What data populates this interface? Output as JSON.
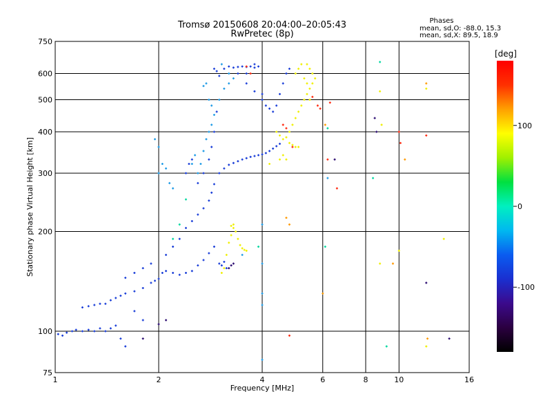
{
  "chart_data": {
    "type": "scatter",
    "title": "Tromsø 20150608 20:04:00–20:05:43",
    "subtitle": "RwPretec (8p)",
    "xlabel": "Frequency [MHz]",
    "ylabel": "Stationary phase Virtual Height [km]",
    "x_scale": "log",
    "y_scale": "log",
    "xlim": [
      1,
      16
    ],
    "ylim": [
      75,
      750
    ],
    "x_ticks": [
      1,
      2,
      4,
      6,
      8,
      10,
      16
    ],
    "y_ticks": [
      75,
      100,
      200,
      300,
      400,
      500,
      600,
      750
    ],
    "grid": true,
    "stats": {
      "heading": "Phases",
      "line_o": "mean, sd,O: -88.0, 15.3",
      "line_x": "mean, sd,X:  89.5, 18.9"
    },
    "colorbar": {
      "label": "[deg]",
      "range": [
        -180,
        180
      ],
      "ticks": [
        100,
        0,
        -100
      ],
      "colormap": [
        "#000000",
        "#2b0040",
        "#3b0a8c",
        "#1a2fd0",
        "#0a5cf0",
        "#00b8f0",
        "#00f0c0",
        "#00e040",
        "#a0f000",
        "#ffff00",
        "#ffa000",
        "#ff3000",
        "#ff0000"
      ]
    },
    "series": [
      {
        "phase": -100,
        "color": "#1a3ed8",
        "points": [
          [
            1.02,
            98
          ],
          [
            1.05,
            97
          ],
          [
            1.08,
            99
          ],
          [
            1.12,
            100
          ],
          [
            1.15,
            101
          ],
          [
            1.2,
            100
          ],
          [
            1.25,
            101
          ],
          [
            1.3,
            100
          ],
          [
            1.35,
            102
          ],
          [
            1.4,
            100
          ],
          [
            1.45,
            102
          ],
          [
            1.5,
            104
          ],
          [
            1.2,
            118
          ],
          [
            1.25,
            119
          ],
          [
            1.3,
            120
          ],
          [
            1.35,
            121
          ],
          [
            1.4,
            121
          ],
          [
            1.45,
            124
          ],
          [
            1.5,
            126
          ],
          [
            1.55,
            128
          ],
          [
            1.6,
            130
          ],
          [
            1.7,
            132
          ],
          [
            1.8,
            135
          ],
          [
            1.9,
            140
          ],
          [
            1.95,
            142
          ],
          [
            2.0,
            144
          ],
          [
            2.05,
            150
          ],
          [
            2.1,
            152
          ],
          [
            2.2,
            150
          ],
          [
            2.3,
            148
          ],
          [
            2.4,
            150
          ],
          [
            2.5,
            152
          ],
          [
            2.6,
            158
          ],
          [
            2.7,
            164
          ],
          [
            2.8,
            172
          ],
          [
            2.9,
            180
          ],
          [
            1.6,
            145
          ],
          [
            1.7,
            150
          ],
          [
            1.8,
            155
          ],
          [
            1.9,
            160
          ],
          [
            2.1,
            170
          ],
          [
            2.2,
            180
          ],
          [
            2.3,
            190
          ],
          [
            2.4,
            205
          ],
          [
            2.5,
            215
          ],
          [
            2.6,
            225
          ],
          [
            2.7,
            235
          ],
          [
            2.8,
            248
          ],
          [
            2.85,
            262
          ],
          [
            2.9,
            278
          ],
          [
            3.0,
            300
          ],
          [
            3.1,
            310
          ],
          [
            3.2,
            318
          ],
          [
            3.3,
            322
          ],
          [
            3.4,
            326
          ],
          [
            3.5,
            330
          ],
          [
            3.6,
            333
          ],
          [
            3.7,
            336
          ],
          [
            3.8,
            338
          ],
          [
            3.9,
            340
          ],
          [
            4.0,
            342
          ],
          [
            4.1,
            345
          ],
          [
            4.2,
            350
          ],
          [
            4.3,
            356
          ],
          [
            4.4,
            362
          ],
          [
            4.5,
            368
          ],
          [
            2.6,
            280
          ],
          [
            2.7,
            300
          ],
          [
            2.8,
            330
          ],
          [
            2.85,
            360
          ],
          [
            2.9,
            400
          ],
          [
            2.95,
            460
          ],
          [
            3.1,
            620
          ],
          [
            3.2,
            630
          ],
          [
            3.3,
            625
          ],
          [
            3.4,
            628
          ],
          [
            3.5,
            630
          ],
          [
            3.6,
            628
          ],
          [
            3.7,
            630
          ],
          [
            3.8,
            625
          ],
          [
            4.0,
            520
          ],
          [
            4.1,
            480
          ],
          [
            4.2,
            470
          ],
          [
            4.3,
            460
          ],
          [
            4.4,
            480
          ],
          [
            4.5,
            520
          ],
          [
            4.6,
            560
          ],
          [
            4.7,
            600
          ],
          [
            4.8,
            620
          ],
          [
            3.6,
            560
          ],
          [
            3.8,
            530
          ],
          [
            4.0,
            500
          ],
          [
            2.4,
            300
          ],
          [
            2.45,
            320
          ],
          [
            2.5,
            330
          ],
          [
            3.0,
            160
          ],
          [
            3.05,
            158
          ],
          [
            3.1,
            162
          ],
          [
            3.15,
            155
          ],
          [
            1.6,
            90
          ],
          [
            1.55,
            95
          ],
          [
            1.7,
            115
          ],
          [
            1.8,
            108
          ],
          [
            2.9,
            620
          ],
          [
            2.95,
            610
          ],
          [
            3.0,
            590
          ],
          [
            3.4,
            600
          ],
          [
            3.6,
            600
          ],
          [
            3.8,
            640
          ],
          [
            3.9,
            630
          ]
        ]
      },
      {
        "phase": -60,
        "color": "#1e9be6",
        "points": [
          [
            2.0,
            300
          ],
          [
            2.05,
            320
          ],
          [
            2.1,
            310
          ],
          [
            2.15,
            280
          ],
          [
            2.2,
            270
          ],
          [
            1.95,
            380
          ],
          [
            2.0,
            360
          ],
          [
            2.6,
            300
          ],
          [
            2.65,
            320
          ],
          [
            2.7,
            350
          ],
          [
            2.75,
            380
          ],
          [
            2.8,
            400
          ],
          [
            2.85,
            420
          ],
          [
            2.9,
            450
          ],
          [
            3.0,
            500
          ],
          [
            3.1,
            540
          ],
          [
            3.2,
            560
          ],
          [
            3.3,
            580
          ],
          [
            2.7,
            550
          ],
          [
            2.75,
            560
          ],
          [
            2.8,
            500
          ],
          [
            2.85,
            480
          ],
          [
            3.2,
            600
          ],
          [
            3.05,
            640
          ],
          [
            3.5,
            170
          ],
          [
            2.5,
            320
          ],
          [
            2.55,
            340
          ],
          [
            4.0,
            210
          ],
          [
            4.0,
            160
          ],
          [
            4.0,
            130
          ],
          [
            4.0,
            120
          ],
          [
            4.0,
            82
          ],
          [
            6.2,
            290
          ]
        ]
      },
      {
        "phase": 90,
        "color": "#f0f000",
        "points": [
          [
            3.05,
            150
          ],
          [
            3.1,
            155
          ],
          [
            3.15,
            170
          ],
          [
            3.2,
            185
          ],
          [
            3.25,
            195
          ],
          [
            3.3,
            205
          ],
          [
            3.35,
            200
          ],
          [
            3.4,
            190
          ],
          [
            3.45,
            182
          ],
          [
            3.5,
            178
          ],
          [
            3.55,
            176
          ],
          [
            3.6,
            175
          ],
          [
            3.3,
            210
          ],
          [
            3.25,
            208
          ],
          [
            4.4,
            400
          ],
          [
            4.5,
            390
          ],
          [
            4.6,
            380
          ],
          [
            4.7,
            385
          ],
          [
            4.8,
            400
          ],
          [
            4.9,
            420
          ],
          [
            5.0,
            440
          ],
          [
            5.1,
            460
          ],
          [
            5.2,
            480
          ],
          [
            5.3,
            500
          ],
          [
            5.4,
            520
          ],
          [
            5.5,
            540
          ],
          [
            5.6,
            560
          ],
          [
            5.7,
            580
          ],
          [
            5.6,
            600
          ],
          [
            5.5,
            620
          ],
          [
            5.4,
            640
          ],
          [
            5.0,
            600
          ],
          [
            5.1,
            620
          ],
          [
            5.2,
            640
          ],
          [
            4.8,
            370
          ],
          [
            4.9,
            365
          ],
          [
            5.0,
            360
          ],
          [
            5.1,
            360
          ],
          [
            4.6,
            340
          ],
          [
            4.5,
            330
          ],
          [
            4.7,
            330
          ],
          [
            5.3,
            580
          ],
          [
            5.4,
            560
          ],
          [
            5.5,
            500
          ],
          [
            4.2,
            320
          ],
          [
            8.8,
            160
          ],
          [
            8.8,
            530
          ],
          [
            8.9,
            420
          ],
          [
            12.0,
            540
          ],
          [
            13.5,
            190
          ],
          [
            10.0,
            175
          ],
          [
            12.0,
            90
          ]
        ]
      },
      {
        "phase": 150,
        "color": "#ff2a10",
        "points": [
          [
            3.6,
            630
          ],
          [
            3.7,
            600
          ],
          [
            4.6,
            420
          ],
          [
            4.7,
            410
          ],
          [
            5.6,
            510
          ],
          [
            5.8,
            480
          ],
          [
            5.9,
            470
          ],
          [
            6.3,
            490
          ],
          [
            6.6,
            270
          ],
          [
            6.2,
            330
          ],
          [
            10.0,
            400
          ],
          [
            10.1,
            370
          ],
          [
            12.0,
            390
          ],
          [
            4.8,
            97
          ],
          [
            4.9,
            360
          ]
        ]
      },
      {
        "phase": -140,
        "color": "#2a0a70",
        "points": [
          [
            3.2,
            155
          ],
          [
            3.25,
            158
          ],
          [
            3.3,
            160
          ],
          [
            2.0,
            105
          ],
          [
            2.1,
            108
          ],
          [
            1.8,
            95
          ],
          [
            8.5,
            440
          ],
          [
            8.6,
            400
          ],
          [
            12.0,
            140
          ],
          [
            14.0,
            95
          ],
          [
            6.5,
            330
          ]
        ]
      },
      {
        "phase": 20,
        "color": "#00d8a0",
        "points": [
          [
            2.2,
            190
          ],
          [
            2.3,
            210
          ],
          [
            2.4,
            250
          ],
          [
            3.9,
            180
          ],
          [
            6.1,
            180
          ],
          [
            6.2,
            410
          ],
          [
            9.2,
            90
          ],
          [
            8.4,
            290
          ],
          [
            8.8,
            650
          ]
        ]
      },
      {
        "phase": 140,
        "color": "#ff9a00",
        "points": [
          [
            4.7,
            220
          ],
          [
            4.8,
            210
          ],
          [
            6.0,
            130
          ],
          [
            6.1,
            420
          ],
          [
            9.6,
            160
          ],
          [
            10.4,
            330
          ],
          [
            12.0,
            560
          ],
          [
            12.1,
            95
          ]
        ]
      }
    ]
  }
}
